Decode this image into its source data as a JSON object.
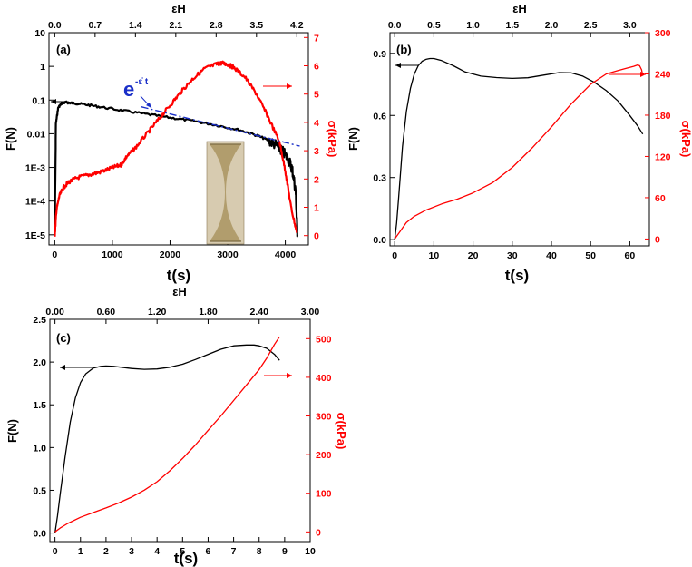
{
  "colors": {
    "black": "#000000",
    "red": "#ff0000",
    "blue": "#1a2fc8",
    "photo_bg": "#d7cbb0",
    "photo_body": "#b19d6d"
  },
  "chart_data": [
    {
      "panel": "(a)",
      "type": "line",
      "xlabel": "t(s)",
      "ylabel_left": "F(N)",
      "ylabel_right": "σ(kPa)",
      "xlabel_top": "εH",
      "x_range": [
        -100,
        4400
      ],
      "x_ticks": [
        0,
        1000,
        2000,
        3000,
        4000
      ],
      "x_tick_labels": [
        "0",
        "1000",
        "2000",
        "3000",
        "4000"
      ],
      "y_left_scale": "log",
      "y_left_range": [
        5e-06,
        10
      ],
      "y_left_ticks": [
        1e-05,
        0.0001,
        0.001,
        0.01,
        0.1,
        1,
        10
      ],
      "y_left_tick_labels": [
        "1E-5",
        "1E-4",
        "1E-3",
        "0.01",
        "0.1",
        "1",
        "10"
      ],
      "y_right_range": [
        -0.33,
        7.17
      ],
      "y_right_ticks": [
        0,
        1,
        2,
        3,
        4,
        5,
        6,
        7
      ],
      "y_right_tick_labels": [
        "0",
        "1",
        "2",
        "3",
        "4",
        "5",
        "6",
        "7"
      ],
      "top_range": [
        -0.1,
        4.4
      ],
      "top_ticks": [
        0,
        0.7,
        1.4,
        2.1,
        2.8,
        3.5,
        4.2
      ],
      "top_tick_labels": [
        "0.0",
        "0.7",
        "1.4",
        "2.1",
        "2.8",
        "3.5",
        "4.2"
      ],
      "annotation": "e",
      "annotation_exponent": "-ε̇ t",
      "series": [
        {
          "name": "F(N)",
          "color": "#000000",
          "axis": "left",
          "noisy": true,
          "t": [
            0,
            20,
            60,
            120,
            200,
            300,
            500,
            800,
            1200,
            1600,
            2000,
            2400,
            2800,
            3200,
            3500,
            3700,
            3850,
            3950,
            4050,
            4120,
            4180,
            4210
          ],
          "values": [
            1e-05,
            0.02,
            0.06,
            0.08,
            0.085,
            0.082,
            0.075,
            0.062,
            0.048,
            0.038,
            0.03,
            0.024,
            0.018,
            0.013,
            0.009,
            0.0065,
            0.0045,
            0.003,
            0.0018,
            0.0009,
            0.0002,
            1e-05
          ]
        },
        {
          "name": "σ(kPa)",
          "color": "#ff0000",
          "axis": "right",
          "noisy": true,
          "t": [
            0,
            30,
            80,
            150,
            250,
            400,
            600,
            800,
            1000,
            1150,
            1250,
            1400,
            1600,
            1800,
            2000,
            2200,
            2400,
            2600,
            2800,
            2900,
            3000,
            3100,
            3300,
            3500,
            3700,
            3900,
            4000,
            4100,
            4200
          ],
          "values": [
            0,
            0.9,
            1.4,
            1.7,
            1.9,
            2.05,
            2.15,
            2.25,
            2.4,
            2.5,
            2.8,
            3.1,
            3.6,
            4.1,
            4.6,
            5.1,
            5.55,
            5.9,
            6.05,
            6.1,
            6.05,
            5.95,
            5.6,
            5.0,
            4.2,
            3.3,
            2.3,
            1.0,
            0.1
          ]
        },
        {
          "name": "exponential fit",
          "color": "#1a2fc8",
          "axis": "left",
          "style": "dashdot",
          "t": [
            1500,
            4250
          ],
          "values": [
            0.063,
            0.0043
          ]
        }
      ]
    },
    {
      "panel": "(b)",
      "type": "line",
      "xlabel": "t(s)",
      "ylabel_left": "F(N)",
      "ylabel_right": "σ(kPa)",
      "xlabel_top": "εH",
      "x_range": [
        -1.2,
        65
      ],
      "x_ticks": [
        0,
        10,
        20,
        30,
        40,
        50,
        60
      ],
      "x_tick_labels": [
        "0",
        "10",
        "20",
        "30",
        "40",
        "50",
        "60"
      ],
      "y_left_range": [
        -0.03,
        1.0
      ],
      "y_left_ticks": [
        0.0,
        0.3,
        0.6,
        0.9
      ],
      "y_left_tick_labels": [
        "0.0",
        "0.3",
        "0.6",
        "0.9"
      ],
      "y_right_range": [
        -10,
        300
      ],
      "y_right_ticks": [
        0,
        60,
        120,
        180,
        240,
        300
      ],
      "y_right_tick_labels": [
        "0",
        "60",
        "120",
        "180",
        "240",
        "300"
      ],
      "top_range": [
        -0.06,
        3.25
      ],
      "top_ticks": [
        0,
        0.5,
        1.0,
        1.5,
        2.0,
        2.5,
        3.0
      ],
      "top_tick_labels": [
        "0.0",
        "0.5",
        "1.0",
        "1.5",
        "2.0",
        "2.5",
        "3.0"
      ],
      "series": [
        {
          "name": "F(N)",
          "color": "#000000",
          "axis": "left",
          "t": [
            0,
            0.5,
            1,
            2,
            3,
            4,
            5,
            6,
            7,
            8,
            9,
            10,
            12,
            15,
            18,
            22,
            26,
            30,
            34,
            38,
            42,
            45,
            48,
            51,
            54,
            57,
            60,
            62,
            63.3
          ],
          "values": [
            0,
            0.08,
            0.2,
            0.45,
            0.62,
            0.73,
            0.8,
            0.84,
            0.862,
            0.871,
            0.875,
            0.875,
            0.865,
            0.84,
            0.81,
            0.79,
            0.783,
            0.779,
            0.782,
            0.795,
            0.807,
            0.806,
            0.79,
            0.76,
            0.72,
            0.67,
            0.6,
            0.55,
            0.51
          ]
        },
        {
          "name": "σ(kPa)",
          "color": "#ff0000",
          "axis": "right",
          "t": [
            0,
            0.5,
            1,
            2,
            3,
            5,
            8,
            12,
            16,
            20,
            25,
            30,
            35,
            40,
            45,
            50,
            54,
            57,
            59,
            61,
            62,
            62.5,
            63,
            63.3
          ],
          "values": [
            0,
            4,
            8,
            16,
            24,
            33,
            42,
            51,
            58,
            67,
            82,
            104,
            132,
            163,
            196,
            225,
            240,
            245,
            248,
            251,
            253,
            252,
            246,
            238
          ]
        }
      ]
    },
    {
      "panel": "(c)",
      "type": "line",
      "xlabel": "t(s)",
      "ylabel_left": "F(N)",
      "ylabel_right": "σ(kPa)",
      "xlabel_top": "εH",
      "x_range": [
        -0.2,
        10
      ],
      "x_ticks": [
        0,
        1,
        2,
        3,
        4,
        5,
        6,
        7,
        8,
        9,
        10
      ],
      "x_tick_labels": [
        "0",
        "1",
        "2",
        "3",
        "4",
        "5",
        "6",
        "7",
        "8",
        "9",
        "10"
      ],
      "y_left_range": [
        -0.1,
        2.5
      ],
      "y_left_ticks": [
        0.0,
        0.5,
        1.0,
        1.5,
        2.0,
        2.5
      ],
      "y_left_tick_labels": [
        "0.0",
        "0.5",
        "1.0",
        "1.5",
        "2.0",
        "2.5"
      ],
      "y_right_range": [
        -25,
        550
      ],
      "y_right_ticks": [
        0,
        100,
        200,
        300,
        400,
        500
      ],
      "y_right_tick_labels": [
        "0",
        "100",
        "200",
        "300",
        "400",
        "500"
      ],
      "top_range": [
        -0.06,
        3.0
      ],
      "top_ticks": [
        0,
        0.6,
        1.2,
        1.8,
        2.4,
        3.0
      ],
      "top_tick_labels": [
        "0.00",
        "0.60",
        "1.20",
        "1.80",
        "2.40",
        "3.00"
      ],
      "series": [
        {
          "name": "F(N)",
          "color": "#000000",
          "axis": "left",
          "t": [
            0,
            0.1,
            0.2,
            0.4,
            0.6,
            0.8,
            1.0,
            1.2,
            1.5,
            1.8,
            2.0,
            2.3,
            2.6,
            3.0,
            3.5,
            4.0,
            4.5,
            5.0,
            5.5,
            6.0,
            6.5,
            7.0,
            7.5,
            7.8,
            8.0,
            8.3,
            8.6,
            8.8
          ],
          "values": [
            0,
            0.2,
            0.45,
            0.9,
            1.3,
            1.58,
            1.76,
            1.86,
            1.93,
            1.95,
            1.955,
            1.95,
            1.94,
            1.925,
            1.915,
            1.92,
            1.94,
            1.975,
            2.03,
            2.09,
            2.15,
            2.19,
            2.2,
            2.2,
            2.19,
            2.16,
            2.09,
            2.02
          ]
        },
        {
          "name": "σ(kPa)",
          "color": "#ff0000",
          "axis": "right",
          "t": [
            0,
            0.2,
            0.5,
            1,
            1.5,
            2,
            2.5,
            3,
            3.5,
            4,
            4.5,
            5,
            5.5,
            6,
            6.5,
            7,
            7.5,
            8,
            8.3,
            8.6,
            8.8
          ],
          "values": [
            0,
            10,
            22,
            38,
            50,
            62,
            75,
            90,
            108,
            130,
            158,
            190,
            225,
            263,
            300,
            340,
            380,
            420,
            450,
            485,
            505
          ]
        }
      ]
    }
  ]
}
